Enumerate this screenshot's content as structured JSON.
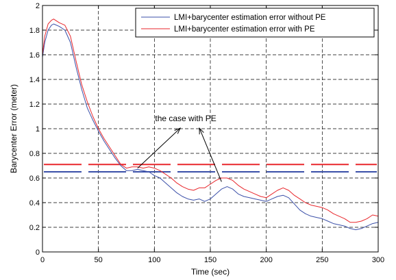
{
  "chart_data": {
    "type": "line",
    "title": "",
    "xlabel": "Time (sec)",
    "ylabel": "Barycenter Error (meter)",
    "xlim": [
      0,
      300
    ],
    "ylim": [
      0,
      2
    ],
    "xticks": [
      0,
      50,
      100,
      150,
      200,
      250,
      300
    ],
    "yticks": [
      0,
      0.2,
      0.4,
      0.6,
      0.8,
      1,
      1.2,
      1.4,
      1.6,
      1.8,
      2
    ],
    "grid": true,
    "legend_position": "top-right",
    "series": [
      {
        "name": "LMI+barycenter estimation error without PE",
        "color": "#3a4fa8",
        "x": [
          0,
          2,
          5,
          8,
          10,
          15,
          20,
          25,
          30,
          35,
          40,
          45,
          50,
          55,
          60,
          65,
          70,
          75,
          80,
          85,
          90,
          95,
          100,
          105,
          110,
          115,
          120,
          125,
          130,
          135,
          140,
          145,
          150,
          155,
          160,
          165,
          170,
          175,
          180,
          185,
          190,
          195,
          200,
          205,
          210,
          215,
          220,
          225,
          230,
          235,
          240,
          245,
          250,
          255,
          260,
          265,
          270,
          275,
          280,
          285,
          290,
          295,
          300
        ],
        "values": [
          1.58,
          1.7,
          1.8,
          1.84,
          1.85,
          1.83,
          1.8,
          1.7,
          1.5,
          1.32,
          1.17,
          1.07,
          0.98,
          0.9,
          0.83,
          0.76,
          0.7,
          0.66,
          0.66,
          0.67,
          0.66,
          0.65,
          0.62,
          0.6,
          0.56,
          0.52,
          0.48,
          0.45,
          0.43,
          0.42,
          0.43,
          0.41,
          0.43,
          0.47,
          0.51,
          0.53,
          0.51,
          0.47,
          0.45,
          0.44,
          0.43,
          0.42,
          0.41,
          0.43,
          0.45,
          0.46,
          0.44,
          0.39,
          0.34,
          0.31,
          0.29,
          0.28,
          0.27,
          0.25,
          0.23,
          0.22,
          0.21,
          0.19,
          0.18,
          0.19,
          0.21,
          0.23,
          0.24
        ]
      },
      {
        "name": "LMI+barycenter estimation error with PE",
        "color": "#e8262b",
        "x": [
          0,
          2,
          5,
          8,
          10,
          15,
          20,
          25,
          30,
          35,
          40,
          45,
          50,
          55,
          60,
          65,
          70,
          75,
          80,
          85,
          90,
          95,
          100,
          105,
          110,
          115,
          120,
          125,
          130,
          135,
          140,
          145,
          150,
          155,
          160,
          165,
          170,
          175,
          180,
          185,
          190,
          195,
          200,
          205,
          210,
          215,
          220,
          225,
          230,
          235,
          240,
          245,
          250,
          255,
          260,
          265,
          270,
          275,
          280,
          285,
          290,
          295,
          300
        ],
        "values": [
          1.6,
          1.75,
          1.85,
          1.88,
          1.89,
          1.86,
          1.84,
          1.75,
          1.55,
          1.36,
          1.22,
          1.1,
          1.0,
          0.92,
          0.85,
          0.78,
          0.71,
          0.68,
          0.69,
          0.69,
          0.68,
          0.69,
          0.68,
          0.66,
          0.63,
          0.6,
          0.56,
          0.53,
          0.51,
          0.5,
          0.52,
          0.52,
          0.55,
          0.58,
          0.6,
          0.6,
          0.58,
          0.54,
          0.51,
          0.49,
          0.47,
          0.45,
          0.44,
          0.47,
          0.5,
          0.52,
          0.5,
          0.46,
          0.43,
          0.4,
          0.38,
          0.37,
          0.36,
          0.34,
          0.31,
          0.29,
          0.27,
          0.24,
          0.24,
          0.25,
          0.27,
          0.3,
          0.29
        ]
      }
    ],
    "reference_lines": [
      {
        "y": 0.71,
        "color": "#e8262b",
        "style": "long-dash"
      },
      {
        "y": 0.65,
        "color": "#3a4fa8",
        "style": "long-dash"
      }
    ],
    "annotations": [
      {
        "text": "the case with PE",
        "x": 128,
        "y": 1.06,
        "arrows_to": [
          [
            85,
            0.68
          ],
          [
            160,
            0.57
          ]
        ]
      }
    ]
  }
}
